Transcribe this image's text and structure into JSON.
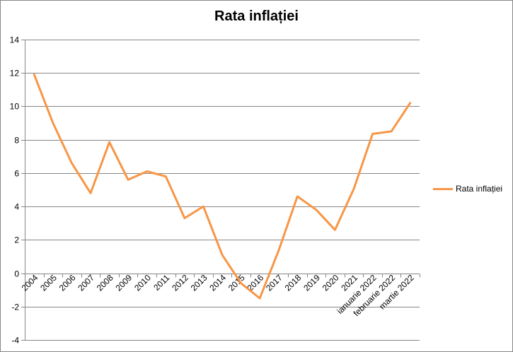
{
  "chart_data": {
    "type": "line",
    "title": "Rata inflației",
    "xlabel": "",
    "ylabel": "",
    "categories": [
      "2004",
      "2005",
      "2006",
      "2007",
      "2008",
      "2009",
      "2010",
      "2011",
      "2012",
      "2013",
      "2014",
      "2015",
      "2016",
      "2017",
      "2018",
      "2019",
      "2020",
      "2021",
      "ianuarie 2022",
      "februarie 2022",
      "martie 2022"
    ],
    "series": [
      {
        "name": "Rata inflației",
        "color": "#F79646",
        "values": [
          11.9,
          9.0,
          6.6,
          4.8,
          7.85,
          5.6,
          6.1,
          5.8,
          3.3,
          4.0,
          1.1,
          -0.6,
          -1.5,
          1.35,
          4.6,
          3.8,
          2.6,
          5.05,
          8.35,
          8.5,
          10.2
        ]
      }
    ],
    "ylim": [
      -4,
      14
    ],
    "yticks": [
      -4,
      -2,
      0,
      2,
      4,
      6,
      8,
      10,
      12,
      14
    ],
    "grid": true,
    "legend_position": "right"
  }
}
